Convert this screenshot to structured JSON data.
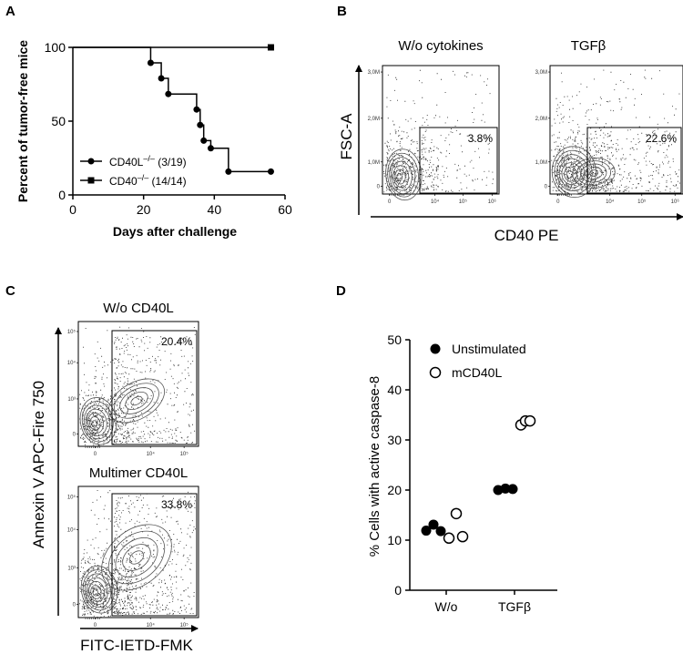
{
  "panels": {
    "a": "A",
    "b": "B",
    "c": "C",
    "d": "D"
  },
  "chart_data": [
    {
      "type": "line",
      "panel": "A",
      "title": "",
      "xlabel": "Days after challenge",
      "ylabel": "Percent of tumor-free mice",
      "xlim": [
        0,
        60
      ],
      "ylim": [
        0,
        100
      ],
      "xticks": [
        "0",
        "20",
        "40",
        "60"
      ],
      "yticks": [
        "0",
        "50",
        "100"
      ],
      "series": [
        {
          "name": "CD40L⁻/⁻ (3/19)",
          "name_main": "CD40L",
          "name_sup": "–/–",
          "name_count": "(3/19)",
          "marker": "circle",
          "step": true,
          "x": [
            0,
            22,
            25,
            27,
            35,
            36,
            37,
            39,
            44,
            56
          ],
          "y": [
            100,
            89.5,
            79,
            68.4,
            57.9,
            47.4,
            36.8,
            31.6,
            15.8,
            15.8
          ]
        },
        {
          "name": "CD40⁻/⁻ (14/14)",
          "name_main": "CD40",
          "name_sup": "–/–",
          "name_count": "(14/14)",
          "marker": "square",
          "step": true,
          "x": [
            0,
            56
          ],
          "y": [
            100,
            100
          ]
        }
      ]
    },
    {
      "type": "scatter",
      "panel": "B",
      "subplots": [
        "W/o cytokines",
        "TGFβ"
      ],
      "gate_percent": [
        "3.8%",
        "22.6%"
      ],
      "xlabel": "CD40 PE",
      "ylabel": "FSC-A",
      "yticks": [
        "3,0M",
        "2,0M",
        "1,0M",
        "0"
      ],
      "xticks": [
        "0",
        "10⁴",
        "10⁵",
        "10⁶"
      ]
    },
    {
      "type": "scatter",
      "panel": "C",
      "subplots": [
        "W/o CD40L",
        "Multimer CD40L"
      ],
      "gate_percent": [
        "20.4%",
        "33.8%"
      ],
      "xlabel": "FITC-IETD-FMK",
      "ylabel": "Annexin V APC-Fire 750",
      "yticks": [
        "10⁵",
        "10⁴",
        "10³",
        "0"
      ],
      "xticks": [
        "0",
        "10⁴",
        "10⁵"
      ]
    },
    {
      "type": "scatter",
      "panel": "D",
      "title": "",
      "xlabel": "",
      "ylabel": "% Cells with active caspase-8",
      "ylim": [
        0,
        50
      ],
      "yticks": [
        "0",
        "10",
        "20",
        "30",
        "40",
        "50"
      ],
      "categories": [
        "W/o",
        "TGFβ"
      ],
      "series": [
        {
          "name": "Unstimulated",
          "marker": "filled-circle",
          "values": [
            [
              11.9,
              13.1,
              11.8
            ],
            [
              20.0,
              20.3,
              20.2
            ]
          ]
        },
        {
          "name": "mCD40L",
          "marker": "open-circle",
          "values": [
            [
              10.4,
              15.3,
              10.7
            ],
            [
              33.0,
              33.8,
              33.8
            ]
          ]
        }
      ]
    }
  ]
}
